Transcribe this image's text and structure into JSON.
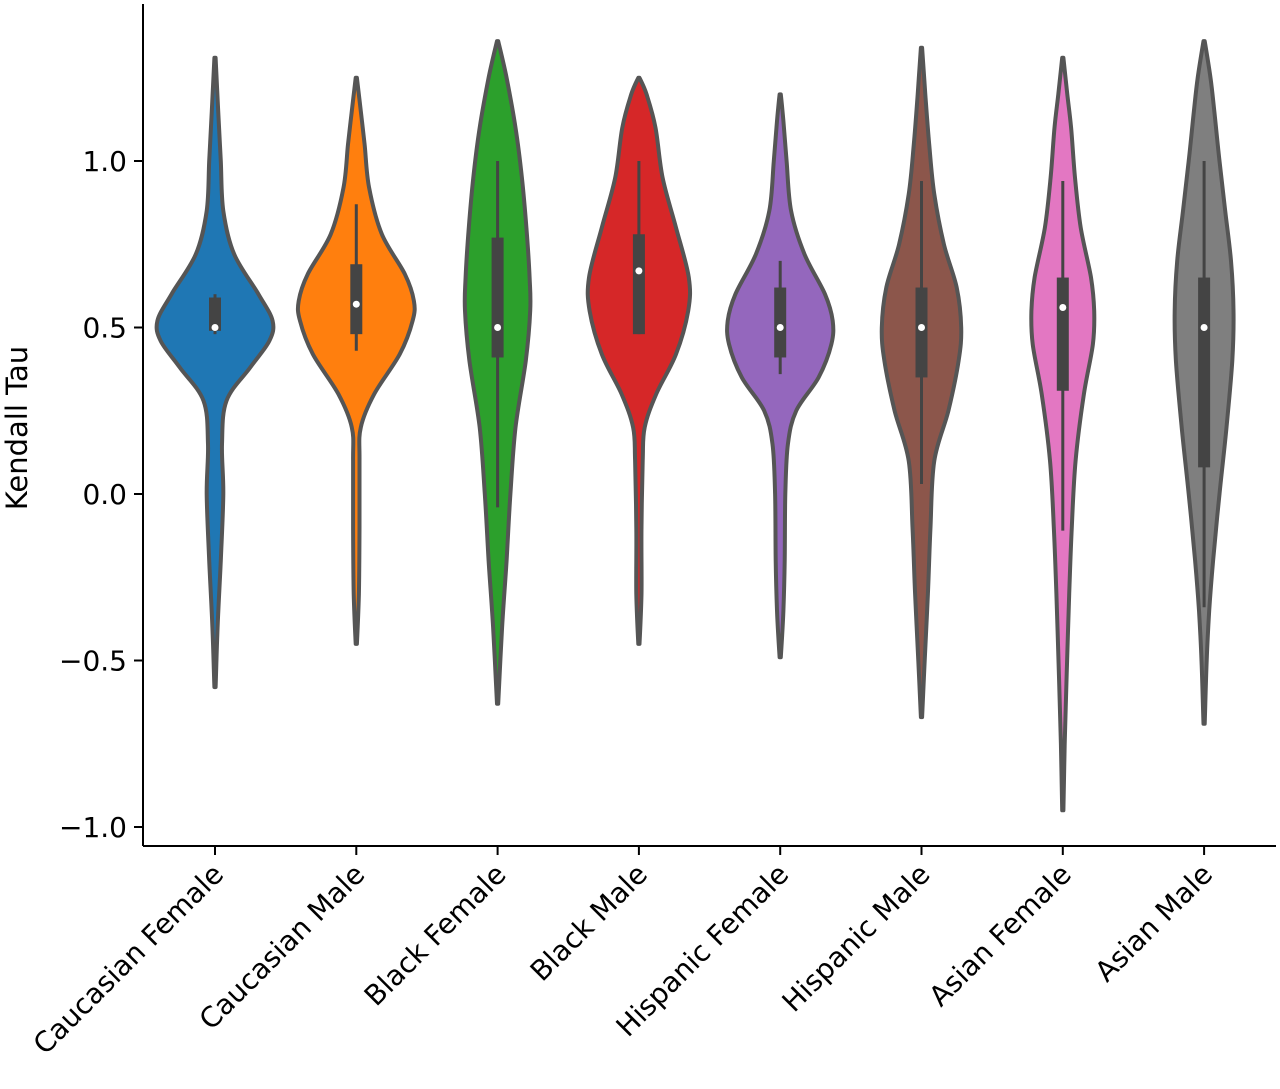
{
  "chart_data": {
    "type": "violin",
    "title": "",
    "xlabel": "",
    "ylabel": "Kendall Tau",
    "ylim": [
      -1.05,
      1.48
    ],
    "yticks": [
      -1.0,
      -0.5,
      0.0,
      0.5,
      1.0
    ],
    "ytick_labels": [
      "−1.0",
      "−0.5",
      "0.0",
      "0.5",
      "1.0"
    ],
    "grid": false,
    "legend": "none",
    "categories": [
      "Caucasian Female",
      "Caucasian Male",
      "Black Female",
      "Black Male",
      "Hispanic Female",
      "Hispanic Male",
      "Asian Female",
      "Asian Male"
    ],
    "series": [
      {
        "category": "Caucasian Female",
        "color": "#1f77b4",
        "min": -0.58,
        "max": 1.31,
        "q1": 0.49,
        "median": 0.5,
        "q3": 0.59,
        "whisker_low": 0.48,
        "whisker_high": 0.6,
        "density": [
          [
            -0.58,
            0.01
          ],
          [
            -0.4,
            0.04
          ],
          [
            -0.2,
            0.09
          ],
          [
            0.0,
            0.13
          ],
          [
            0.15,
            0.11
          ],
          [
            0.28,
            0.18
          ],
          [
            0.38,
            0.55
          ],
          [
            0.46,
            0.85
          ],
          [
            0.52,
            0.9
          ],
          [
            0.6,
            0.68
          ],
          [
            0.72,
            0.3
          ],
          [
            0.85,
            0.13
          ],
          [
            1.0,
            0.09
          ],
          [
            1.15,
            0.05
          ],
          [
            1.31,
            0.01
          ]
        ]
      },
      {
        "category": "Caucasian Male",
        "color": "#ff7f0e",
        "min": -0.45,
        "max": 1.25,
        "q1": 0.48,
        "median": 0.57,
        "q3": 0.69,
        "whisker_low": 0.43,
        "whisker_high": 0.87,
        "density": [
          [
            -0.45,
            0.01
          ],
          [
            -0.3,
            0.04
          ],
          [
            -0.1,
            0.05
          ],
          [
            0.1,
            0.05
          ],
          [
            0.2,
            0.07
          ],
          [
            0.3,
            0.28
          ],
          [
            0.42,
            0.68
          ],
          [
            0.52,
            0.88
          ],
          [
            0.58,
            0.9
          ],
          [
            0.66,
            0.76
          ],
          [
            0.78,
            0.4
          ],
          [
            0.92,
            0.2
          ],
          [
            1.05,
            0.13
          ],
          [
            1.15,
            0.07
          ],
          [
            1.25,
            0.01
          ]
        ]
      },
      {
        "category": "Black Female",
        "color": "#2ca02c",
        "min": -0.63,
        "max": 1.36,
        "q1": 0.41,
        "median": 0.5,
        "q3": 0.77,
        "whisker_low": -0.04,
        "whisker_high": 1.0,
        "density": [
          [
            -0.63,
            0.01
          ],
          [
            -0.4,
            0.07
          ],
          [
            -0.2,
            0.14
          ],
          [
            0.0,
            0.2
          ],
          [
            0.2,
            0.28
          ],
          [
            0.4,
            0.44
          ],
          [
            0.55,
            0.51
          ],
          [
            0.65,
            0.5
          ],
          [
            0.8,
            0.45
          ],
          [
            0.95,
            0.38
          ],
          [
            1.1,
            0.28
          ],
          [
            1.25,
            0.14
          ],
          [
            1.36,
            0.01
          ]
        ]
      },
      {
        "category": "Black Male",
        "color": "#d62728",
        "min": -0.45,
        "max": 1.25,
        "q1": 0.48,
        "median": 0.67,
        "q3": 0.78,
        "whisker_low": 0.48,
        "whisker_high": 1.0,
        "density": [
          [
            -0.45,
            0.01
          ],
          [
            -0.3,
            0.04
          ],
          [
            -0.1,
            0.04
          ],
          [
            0.1,
            0.06
          ],
          [
            0.2,
            0.09
          ],
          [
            0.3,
            0.27
          ],
          [
            0.42,
            0.58
          ],
          [
            0.55,
            0.77
          ],
          [
            0.65,
            0.78
          ],
          [
            0.8,
            0.58
          ],
          [
            0.95,
            0.37
          ],
          [
            1.1,
            0.26
          ],
          [
            1.2,
            0.12
          ],
          [
            1.25,
            0.01
          ]
        ]
      },
      {
        "category": "Hispanic Female",
        "color": "#9467bd",
        "min": -0.49,
        "max": 1.2,
        "q1": 0.41,
        "median": 0.5,
        "q3": 0.62,
        "whisker_low": 0.36,
        "whisker_high": 0.7,
        "density": [
          [
            -0.49,
            0.01
          ],
          [
            -0.35,
            0.05
          ],
          [
            -0.2,
            0.07
          ],
          [
            0.0,
            0.08
          ],
          [
            0.15,
            0.12
          ],
          [
            0.25,
            0.25
          ],
          [
            0.35,
            0.6
          ],
          [
            0.45,
            0.8
          ],
          [
            0.52,
            0.82
          ],
          [
            0.6,
            0.7
          ],
          [
            0.72,
            0.38
          ],
          [
            0.85,
            0.17
          ],
          [
            1.0,
            0.1
          ],
          [
            1.12,
            0.05
          ],
          [
            1.2,
            0.01
          ]
        ]
      },
      {
        "category": "Hispanic Male",
        "color": "#8c564b",
        "min": -0.67,
        "max": 1.34,
        "q1": 0.35,
        "median": 0.5,
        "q3": 0.62,
        "whisker_low": 0.03,
        "whisker_high": 0.94,
        "density": [
          [
            -0.67,
            0.01
          ],
          [
            -0.5,
            0.05
          ],
          [
            -0.3,
            0.1
          ],
          [
            -0.1,
            0.14
          ],
          [
            0.1,
            0.2
          ],
          [
            0.25,
            0.42
          ],
          [
            0.4,
            0.58
          ],
          [
            0.5,
            0.62
          ],
          [
            0.62,
            0.55
          ],
          [
            0.75,
            0.35
          ],
          [
            0.9,
            0.2
          ],
          [
            1.05,
            0.12
          ],
          [
            1.2,
            0.06
          ],
          [
            1.34,
            0.01
          ]
        ]
      },
      {
        "category": "Asian Female",
        "color": "#e377c2",
        "min": -0.95,
        "max": 1.31,
        "q1": 0.31,
        "median": 0.56,
        "q3": 0.65,
        "whisker_low": -0.11,
        "whisker_high": 0.94,
        "density": [
          [
            -0.95,
            0.01
          ],
          [
            -0.75,
            0.03
          ],
          [
            -0.55,
            0.06
          ],
          [
            -0.3,
            0.1
          ],
          [
            -0.1,
            0.14
          ],
          [
            0.1,
            0.2
          ],
          [
            0.3,
            0.33
          ],
          [
            0.45,
            0.47
          ],
          [
            0.55,
            0.49
          ],
          [
            0.65,
            0.44
          ],
          [
            0.8,
            0.28
          ],
          [
            0.95,
            0.19
          ],
          [
            1.1,
            0.13
          ],
          [
            1.2,
            0.07
          ],
          [
            1.31,
            0.01
          ]
        ]
      },
      {
        "category": "Asian Male",
        "color": "#7f7f7f",
        "min": -0.69,
        "max": 1.36,
        "q1": 0.08,
        "median": 0.5,
        "q3": 0.65,
        "whisker_low": -0.34,
        "whisker_high": 1.0,
        "density": [
          [
            -0.69,
            0.01
          ],
          [
            -0.5,
            0.04
          ],
          [
            -0.35,
            0.08
          ],
          [
            -0.2,
            0.14
          ],
          [
            0.0,
            0.24
          ],
          [
            0.2,
            0.35
          ],
          [
            0.4,
            0.44
          ],
          [
            0.55,
            0.46
          ],
          [
            0.7,
            0.42
          ],
          [
            0.85,
            0.33
          ],
          [
            1.0,
            0.24
          ],
          [
            1.15,
            0.16
          ],
          [
            1.25,
            0.1
          ],
          [
            1.36,
            0.01
          ]
        ]
      }
    ]
  }
}
